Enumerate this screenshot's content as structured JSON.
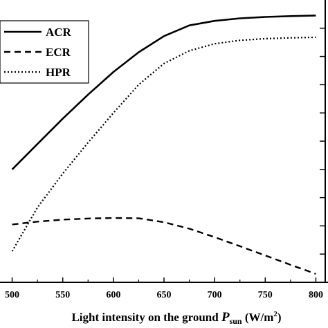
{
  "chart_data": {
    "type": "line",
    "xlabel": {
      "prefix": "Light intensity on the ground ",
      "symbol": "P",
      "subscript": "sun",
      "unit_open": " (W/m",
      "unit_sup": "2",
      "unit_close": ")"
    },
    "ylabel": "",
    "xlim": [
      488,
      812
    ],
    "ylim": [
      0,
      1
    ],
    "xticks": [
      "500",
      "550",
      "600",
      "650",
      "700",
      "750",
      "800"
    ],
    "xtick_values": [
      500,
      550,
      600,
      650,
      700,
      750,
      800
    ],
    "ytick_values": [
      0.1,
      0.2,
      0.3,
      0.4,
      0.5,
      0.6,
      0.7,
      0.8,
      0.9
    ],
    "legend_position": "top-left",
    "series": [
      {
        "name": "ACR",
        "style": "solid",
        "x": [
          500,
          525,
          550,
          575,
          600,
          625,
          650,
          675,
          700,
          725,
          750,
          775,
          800
        ],
        "y": [
          0.4,
          0.49,
          0.58,
          0.665,
          0.745,
          0.815,
          0.872,
          0.91,
          0.926,
          0.935,
          0.94,
          0.943,
          0.945
        ]
      },
      {
        "name": "ECR",
        "style": "dashed",
        "x": [
          500,
          525,
          550,
          575,
          600,
          625,
          650,
          675,
          700,
          725,
          750,
          775,
          800
        ],
        "y": [
          0.205,
          0.215,
          0.222,
          0.226,
          0.228,
          0.227,
          0.213,
          0.19,
          0.16,
          0.128,
          0.095,
          0.062,
          0.03
        ]
      },
      {
        "name": "HPR",
        "style": "dotted",
        "x": [
          500,
          525,
          550,
          575,
          600,
          625,
          650,
          675,
          700,
          725,
          750,
          775,
          800
        ],
        "y": [
          0.11,
          0.265,
          0.385,
          0.495,
          0.6,
          0.7,
          0.775,
          0.82,
          0.845,
          0.857,
          0.863,
          0.866,
          0.868
        ]
      }
    ]
  }
}
